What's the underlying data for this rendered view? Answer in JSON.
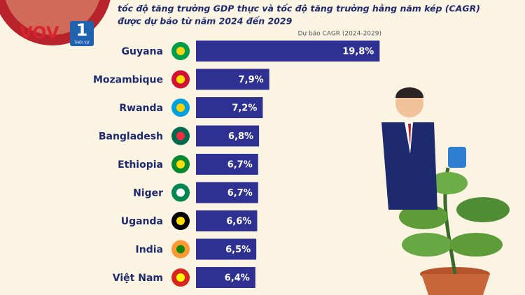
{
  "logo": {
    "brand": "VOV",
    "channel": "1",
    "tagline": "THỜI SỰ"
  },
  "chart_data": {
    "type": "bar",
    "orientation": "horizontal",
    "title": "tốc độ tăng trưởng GDP thực và tốc độ tăng trưởng hằng năm kép (CAGR)",
    "subtitle": "được dự báo từ năm 2024 đến 2029",
    "value_axis_label": "Dự báo CAGR (2024-2029)",
    "categories": [
      "Guyana",
      "Mozambique",
      "Rwanda",
      "Bangladesh",
      "Ethiopia",
      "Niger",
      "Uganda",
      "India",
      "Việt Nam"
    ],
    "values": [
      19.8,
      7.9,
      7.2,
      6.8,
      6.7,
      6.7,
      6.6,
      6.5,
      6.4
    ],
    "value_labels": [
      "19,8%",
      "7,9%",
      "7,2%",
      "6,8%",
      "6,7%",
      "6,7%",
      "6,6%",
      "6,5%",
      "6,4%"
    ],
    "color": "#2e3192",
    "xlim": [
      0,
      20
    ]
  }
}
